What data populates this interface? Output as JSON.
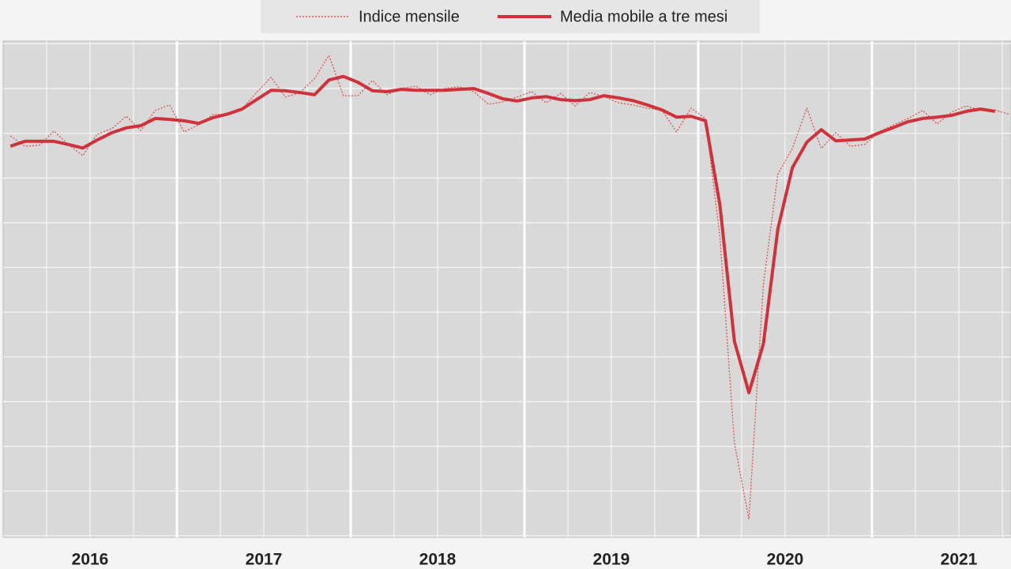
{
  "chart_data": {
    "type": "line",
    "x": [
      2016.0417,
      2016.125,
      2016.2083,
      2016.2917,
      2016.375,
      2016.4583,
      2016.5417,
      2016.625,
      2016.7083,
      2016.7917,
      2016.875,
      2016.9583,
      2017.0417,
      2017.125,
      2017.2083,
      2017.2917,
      2017.375,
      2017.4583,
      2017.5417,
      2017.625,
      2017.7083,
      2017.7917,
      2017.875,
      2017.9583,
      2018.0417,
      2018.125,
      2018.2083,
      2018.2917,
      2018.375,
      2018.4583,
      2018.5417,
      2018.625,
      2018.7083,
      2018.7917,
      2018.875,
      2018.9583,
      2019.0417,
      2019.125,
      2019.2083,
      2019.2917,
      2019.375,
      2019.4583,
      2019.5417,
      2019.625,
      2019.7083,
      2019.7917,
      2019.875,
      2019.9583,
      2020.0417,
      2020.125,
      2020.2083,
      2020.2917,
      2020.375,
      2020.4583,
      2020.5417,
      2020.625,
      2020.7083,
      2020.7917,
      2020.875,
      2020.9583,
      2021.0417,
      2021.125,
      2021.2083,
      2021.2917,
      2021.375,
      2021.4583,
      2021.5417,
      2021.625,
      2021.7083,
      2021.7917
    ],
    "series": [
      {
        "name": "Indice mensile",
        "color": "#d9534f",
        "style": "dotted",
        "values": [
          8.94,
          8.71,
          8.73,
          9.05,
          8.75,
          8.5,
          8.98,
          9.1,
          9.38,
          9.06,
          9.51,
          9.63,
          9.03,
          9.19,
          9.42,
          9.43,
          9.54,
          9.91,
          10.25,
          9.81,
          9.91,
          10.22,
          10.74,
          9.84,
          9.84,
          10.18,
          9.86,
          10.0,
          10.05,
          9.86,
          10.0,
          10.04,
          9.93,
          9.65,
          9.7,
          9.81,
          9.93,
          9.68,
          9.89,
          9.61,
          9.91,
          9.82,
          9.68,
          9.63,
          9.56,
          9.51,
          9.03,
          9.56,
          9.33,
          6.68,
          2.08,
          0.37,
          5.62,
          8.09,
          8.66,
          9.56,
          8.66,
          9.01,
          8.71,
          8.75,
          9.03,
          9.19,
          9.33,
          9.51,
          9.21,
          9.47,
          9.61,
          9.51,
          9.52,
          9.42
        ]
      },
      {
        "name": "Media mobile a tre mesi",
        "color": "#d0323c",
        "style": "solid",
        "values": [
          8.71,
          8.82,
          8.82,
          8.82,
          8.75,
          8.67,
          8.85,
          9.01,
          9.12,
          9.17,
          9.33,
          9.31,
          9.28,
          9.22,
          9.35,
          9.43,
          9.54,
          9.75,
          9.96,
          9.95,
          9.91,
          9.86,
          10.19,
          10.27,
          10.14,
          9.95,
          9.93,
          9.98,
          9.96,
          9.96,
          9.96,
          9.98,
          10.0,
          9.89,
          9.77,
          9.72,
          9.79,
          9.82,
          9.75,
          9.73,
          9.75,
          9.84,
          9.79,
          9.73,
          9.63,
          9.52,
          9.36,
          9.38,
          9.28,
          7.39,
          4.35,
          3.2,
          4.29,
          6.86,
          8.23,
          8.8,
          9.08,
          8.83,
          8.85,
          8.87,
          9.01,
          9.13,
          9.26,
          9.33,
          9.36,
          9.4,
          9.49,
          9.54,
          9.49,
          null
        ]
      }
    ],
    "xlim": [
      2016,
      2021.8
    ],
    "xticks": [
      {
        "value": 2016.5,
        "label": "2016"
      },
      {
        "value": 2017.5,
        "label": "2017"
      },
      {
        "value": 2018.5,
        "label": "2018"
      },
      {
        "value": 2019.5,
        "label": "2019"
      },
      {
        "value": 2020.5,
        "label": "2020"
      },
      {
        "value": 2021.5,
        "label": "2021"
      }
    ],
    "xgrid": [
      2016.25,
      2016.5,
      2016.75,
      2017,
      2017.25,
      2017.5,
      2017.75,
      2018,
      2018.25,
      2018.5,
      2018.75,
      2019,
      2019.25,
      2019.5,
      2019.75,
      2020,
      2020.25,
      2020.5,
      2020.75,
      2021,
      2021.25,
      2021.5,
      2021.75
    ],
    "ylim": [
      0,
      11
    ],
    "yticks": [
      0,
      1,
      2,
      3,
      4,
      5,
      6,
      7,
      8,
      9,
      10,
      11
    ],
    "grid": true
  }
}
